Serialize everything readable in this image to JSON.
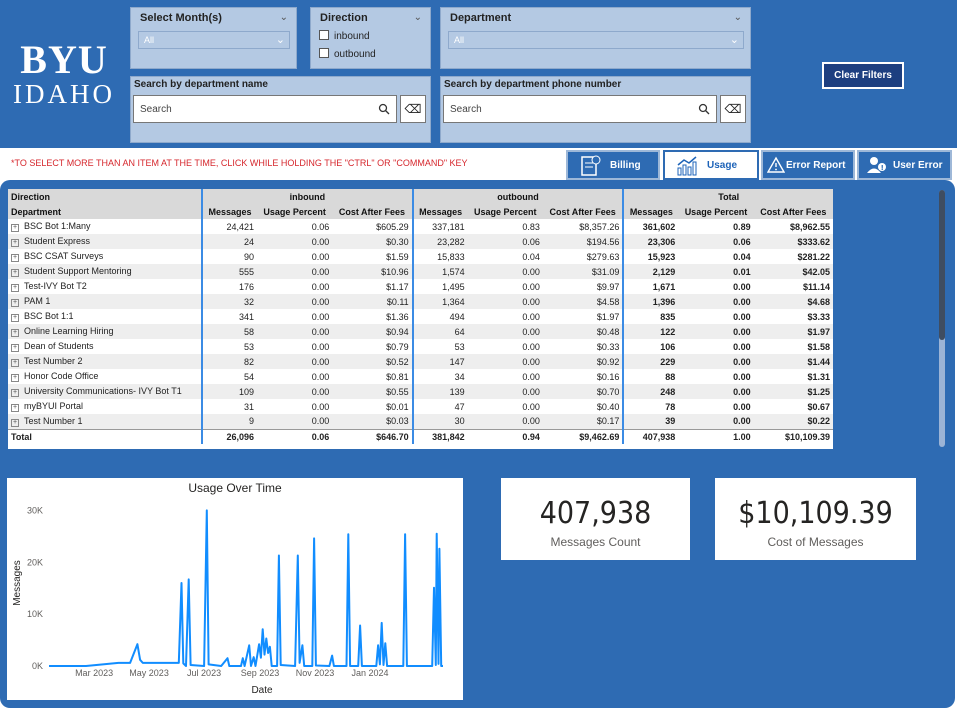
{
  "brand": {
    "line1": "BYU",
    "line2": "IDAHO"
  },
  "filters": {
    "month": {
      "title": "Select Month(s)",
      "value": "All"
    },
    "direction": {
      "title": "Direction",
      "options": [
        "inbound",
        "outbound"
      ]
    },
    "department": {
      "title": "Department",
      "value": "All"
    },
    "search_name": {
      "title": "Search by department name",
      "placeholder": "Search"
    },
    "search_phone": {
      "title": "Search by department phone number",
      "placeholder": "Search"
    },
    "clear_label": "Clear Filters"
  },
  "notice": "*TO SELECT MORE THAN AN ITEM AT THE TIME, CLICK WHILE HOLDING THE \"CTRL\" OR \"COMMAND\" KEY",
  "tabs": [
    {
      "label": "Billing",
      "icon": "billing-icon",
      "active": false
    },
    {
      "label": "Usage",
      "icon": "usage-chart-icon",
      "active": true
    },
    {
      "label": "Error Report",
      "icon": "warning-icon",
      "active": false
    },
    {
      "label": "User Error",
      "icon": "user-error-icon",
      "active": false
    }
  ],
  "matrix": {
    "row_header_1": "Direction",
    "row_header_2": "Department",
    "groups": [
      "inbound",
      "outbound",
      "Total"
    ],
    "columns": [
      "Messages",
      "Usage Percent",
      "Cost After Fees"
    ],
    "rows": [
      {
        "dept": "BSC Bot 1:Many",
        "in": [
          "24,421",
          "0.06",
          "$605.29"
        ],
        "out": [
          "337,181",
          "0.83",
          "$8,357.26"
        ],
        "tot": [
          "361,602",
          "0.89",
          "$8,962.55"
        ]
      },
      {
        "dept": "Student Express",
        "in": [
          "24",
          "0.00",
          "$0.30"
        ],
        "out": [
          "23,282",
          "0.06",
          "$194.56"
        ],
        "tot": [
          "23,306",
          "0.06",
          "$333.62"
        ]
      },
      {
        "dept": "BSC CSAT Surveys",
        "in": [
          "90",
          "0.00",
          "$1.59"
        ],
        "out": [
          "15,833",
          "0.04",
          "$279.63"
        ],
        "tot": [
          "15,923",
          "0.04",
          "$281.22"
        ]
      },
      {
        "dept": "Student Support Mentoring",
        "in": [
          "555",
          "0.00",
          "$10.96"
        ],
        "out": [
          "1,574",
          "0.00",
          "$31.09"
        ],
        "tot": [
          "2,129",
          "0.01",
          "$42.05"
        ]
      },
      {
        "dept": "Test-IVY Bot T2",
        "in": [
          "176",
          "0.00",
          "$1.17"
        ],
        "out": [
          "1,495",
          "0.00",
          "$9.97"
        ],
        "tot": [
          "1,671",
          "0.00",
          "$11.14"
        ]
      },
      {
        "dept": "PAM 1",
        "in": [
          "32",
          "0.00",
          "$0.11"
        ],
        "out": [
          "1,364",
          "0.00",
          "$4.58"
        ],
        "tot": [
          "1,396",
          "0.00",
          "$4.68"
        ]
      },
      {
        "dept": "BSC Bot 1:1",
        "in": [
          "341",
          "0.00",
          "$1.36"
        ],
        "out": [
          "494",
          "0.00",
          "$1.97"
        ],
        "tot": [
          "835",
          "0.00",
          "$3.33"
        ]
      },
      {
        "dept": "Online Learning Hiring",
        "in": [
          "58",
          "0.00",
          "$0.94"
        ],
        "out": [
          "64",
          "0.00",
          "$0.48"
        ],
        "tot": [
          "122",
          "0.00",
          "$1.97"
        ]
      },
      {
        "dept": "Dean of Students",
        "in": [
          "53",
          "0.00",
          "$0.79"
        ],
        "out": [
          "53",
          "0.00",
          "$0.33"
        ],
        "tot": [
          "106",
          "0.00",
          "$1.58"
        ]
      },
      {
        "dept": "Test Number 2",
        "in": [
          "82",
          "0.00",
          "$0.52"
        ],
        "out": [
          "147",
          "0.00",
          "$0.92"
        ],
        "tot": [
          "229",
          "0.00",
          "$1.44"
        ]
      },
      {
        "dept": "Honor Code Office",
        "in": [
          "54",
          "0.00",
          "$0.81"
        ],
        "out": [
          "34",
          "0.00",
          "$0.16"
        ],
        "tot": [
          "88",
          "0.00",
          "$1.31"
        ]
      },
      {
        "dept": "University Communications- IVY Bot T1",
        "in": [
          "109",
          "0.00",
          "$0.55"
        ],
        "out": [
          "139",
          "0.00",
          "$0.70"
        ],
        "tot": [
          "248",
          "0.00",
          "$1.25"
        ]
      },
      {
        "dept": "myBYUI Portal",
        "in": [
          "31",
          "0.00",
          "$0.01"
        ],
        "out": [
          "47",
          "0.00",
          "$0.40"
        ],
        "tot": [
          "78",
          "0.00",
          "$0.67"
        ]
      },
      {
        "dept": "Test Number 1",
        "in": [
          "9",
          "0.00",
          "$0.03"
        ],
        "out": [
          "30",
          "0.00",
          "$0.17"
        ],
        "tot": [
          "39",
          "0.00",
          "$0.22"
        ]
      }
    ],
    "total": {
      "label": "Total",
      "in": [
        "26,096",
        "0.06",
        "$646.70"
      ],
      "out": [
        "381,842",
        "0.94",
        "$9,462.69"
      ],
      "tot": [
        "407,938",
        "1.00",
        "$10,109.39"
      ]
    }
  },
  "kpis": [
    {
      "value": "407,938",
      "caption": "Messages Count"
    },
    {
      "value": "$10,109.39",
      "caption": "Cost of Messages"
    }
  ],
  "colors": {
    "band": "#2e6bb3",
    "line": "#118dff",
    "accent_border": "#3b8be4",
    "button": "#1d3f80",
    "notice": "#d6272d"
  },
  "chart_data": {
    "type": "line",
    "title": "Usage Over Time",
    "xlabel": "Date",
    "ylabel": "Messages",
    "ylim": [
      0,
      32000
    ],
    "yticks": [
      0,
      10000,
      20000,
      30000
    ],
    "ytick_labels": [
      "0K",
      "10K",
      "20K",
      "30K"
    ],
    "xlim": [
      "2023-01-10",
      "2024-03-22"
    ],
    "xtick_dates": [
      "2023-03-01",
      "2023-05-01",
      "2023-07-01",
      "2023-09-01",
      "2023-11-01",
      "2024-01-01"
    ],
    "xtick_labels": [
      "Mar 2023",
      "May 2023",
      "Jul 2023",
      "Sep 2023",
      "Nov 2023",
      "Jan 2024"
    ],
    "grid": false,
    "series": [
      {
        "points": [
          [
            "2023-01-10",
            0
          ],
          [
            "2023-02-20",
            0
          ],
          [
            "2023-03-28",
            600
          ],
          [
            "2023-04-10",
            600
          ],
          [
            "2023-04-18",
            4200
          ],
          [
            "2023-04-21",
            1200
          ],
          [
            "2023-04-24",
            600
          ],
          [
            "2023-06-03",
            600
          ],
          [
            "2023-06-06",
            16000
          ],
          [
            "2023-06-08",
            500
          ],
          [
            "2023-06-11",
            0
          ],
          [
            "2023-06-14",
            16700
          ],
          [
            "2023-06-16",
            200
          ],
          [
            "2023-07-01",
            0
          ],
          [
            "2023-07-04",
            30000
          ],
          [
            "2023-07-06",
            300
          ],
          [
            "2023-07-20",
            0
          ],
          [
            "2023-07-27",
            1500
          ],
          [
            "2023-07-29",
            0
          ],
          [
            "2023-08-11",
            0
          ],
          [
            "2023-08-13",
            1500
          ],
          [
            "2023-08-15",
            0
          ],
          [
            "2023-08-20",
            4000
          ],
          [
            "2023-08-22",
            0
          ],
          [
            "2023-08-25",
            1700
          ],
          [
            "2023-08-27",
            0
          ],
          [
            "2023-08-31",
            4200
          ],
          [
            "2023-09-02",
            1600
          ],
          [
            "2023-09-04",
            7100
          ],
          [
            "2023-09-06",
            2200
          ],
          [
            "2023-09-08",
            5300
          ],
          [
            "2023-09-10",
            2500
          ],
          [
            "2023-09-12",
            3700
          ],
          [
            "2023-09-14",
            0
          ],
          [
            "2023-09-20",
            0
          ],
          [
            "2023-09-22",
            21300
          ],
          [
            "2023-09-24",
            200
          ],
          [
            "2023-10-10",
            0
          ],
          [
            "2023-10-13",
            21300
          ],
          [
            "2023-10-15",
            600
          ],
          [
            "2023-10-18",
            4000
          ],
          [
            "2023-10-20",
            0
          ],
          [
            "2023-10-29",
            0
          ],
          [
            "2023-10-31",
            24600
          ],
          [
            "2023-11-02",
            100
          ],
          [
            "2023-11-17",
            0
          ],
          [
            "2023-11-20",
            2000
          ],
          [
            "2023-11-22",
            0
          ],
          [
            "2023-12-06",
            0
          ],
          [
            "2023-12-08",
            25400
          ],
          [
            "2023-12-10",
            0
          ],
          [
            "2023-12-19",
            0
          ],
          [
            "2023-12-21",
            7800
          ],
          [
            "2023-12-23",
            0
          ],
          [
            "2024-01-08",
            0
          ],
          [
            "2024-01-10",
            4000
          ],
          [
            "2024-01-12",
            300
          ],
          [
            "2024-01-14",
            8300
          ],
          [
            "2024-01-16",
            200
          ],
          [
            "2024-01-18",
            4400
          ],
          [
            "2024-01-20",
            0
          ],
          [
            "2024-02-07",
            0
          ],
          [
            "2024-02-09",
            25400
          ],
          [
            "2024-02-11",
            0
          ],
          [
            "2024-03-10",
            0
          ],
          [
            "2024-03-12",
            15100
          ],
          [
            "2024-03-14",
            200
          ],
          [
            "2024-03-15",
            25500
          ],
          [
            "2024-03-17",
            400
          ],
          [
            "2024-03-18",
            22600
          ],
          [
            "2024-03-20",
            0
          ],
          [
            "2024-03-22",
            0
          ]
        ]
      }
    ]
  }
}
